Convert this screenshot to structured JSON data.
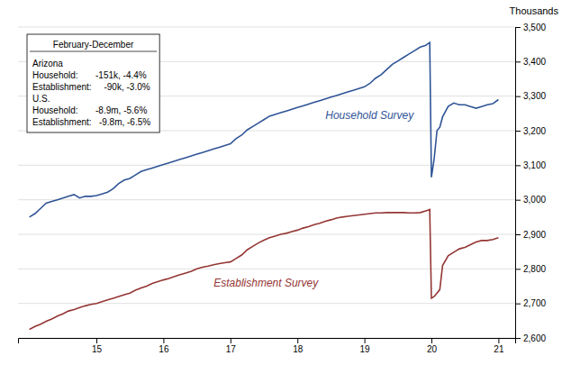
{
  "chart_data": {
    "type": "line",
    "title": "Thousands",
    "annotation": {
      "title": "February-December",
      "lines": [
        "Arizona",
        "Household:       -151k, -4.4%",
        "Establishment:     -90k, -3.0%",
        "U.S.",
        "Household:       -8.9m, -5.6%",
        "Establishment:   -9.8m, -6.5%"
      ]
    },
    "xlim": [
      13.83,
      21.25
    ],
    "xticks": [
      15,
      16,
      17,
      18,
      19,
      20,
      21
    ],
    "ylim": [
      2600,
      3500
    ],
    "yticks": [
      {
        "value": 2600,
        "label": "2,600"
      },
      {
        "value": 2700,
        "label": "2,700"
      },
      {
        "value": 2800,
        "label": "2,800"
      },
      {
        "value": 2900,
        "label": "2,900"
      },
      {
        "value": 3000,
        "label": "3,000"
      },
      {
        "value": 3100,
        "label": "3,100"
      },
      {
        "value": 3200,
        "label": "3,200"
      },
      {
        "value": 3300,
        "label": "3,300"
      },
      {
        "value": 3400,
        "label": "3,400"
      },
      {
        "value": 3500,
        "label": "3,500"
      }
    ],
    "grid": true,
    "series": [
      {
        "name": "Household Survey",
        "color": "#2F5496",
        "x": [
          14.0,
          14.083,
          14.167,
          14.25,
          14.333,
          14.417,
          14.5,
          14.583,
          14.667,
          14.75,
          14.833,
          14.917,
          15.0,
          15.083,
          15.167,
          15.25,
          15.333,
          15.417,
          15.5,
          15.583,
          15.667,
          15.75,
          15.833,
          15.917,
          16.0,
          16.083,
          16.167,
          16.25,
          16.333,
          16.417,
          16.5,
          16.583,
          16.667,
          16.75,
          16.833,
          16.917,
          17.0,
          17.083,
          17.167,
          17.25,
          17.333,
          17.417,
          17.5,
          17.583,
          17.667,
          17.75,
          17.833,
          17.917,
          18.0,
          18.083,
          18.167,
          18.25,
          18.333,
          18.417,
          18.5,
          18.583,
          18.667,
          18.75,
          18.833,
          18.917,
          19.0,
          19.083,
          19.167,
          19.25,
          19.333,
          19.417,
          19.5,
          19.583,
          19.667,
          19.75,
          19.833,
          19.917,
          19.95,
          19.975,
          20.0,
          20.042,
          20.083,
          20.125,
          20.167,
          20.208,
          20.25,
          20.333,
          20.417,
          20.5,
          20.583,
          20.667,
          20.75,
          20.833,
          20.917,
          21.0
        ],
        "values": [
          2950,
          2960,
          2975,
          2990,
          2995,
          3000,
          3005,
          3010,
          3015,
          3005,
          3010,
          3010,
          3012,
          3017,
          3022,
          3032,
          3047,
          3057,
          3062,
          3072,
          3082,
          3087,
          3092,
          3097,
          3102,
          3107,
          3112,
          3117,
          3122,
          3127,
          3132,
          3137,
          3142,
          3147,
          3152,
          3157,
          3162,
          3177,
          3187,
          3202,
          3212,
          3222,
          3232,
          3242,
          3247,
          3252,
          3257,
          3262,
          3267,
          3272,
          3277,
          3282,
          3287,
          3292,
          3297,
          3302,
          3307,
          3312,
          3317,
          3322,
          3327,
          3337,
          3352,
          3362,
          3377,
          3392,
          3402,
          3412,
          3422,
          3432,
          3442,
          3447,
          3452,
          3455,
          3065,
          3120,
          3200,
          3210,
          3240,
          3255,
          3270,
          3280,
          3275,
          3275,
          3270,
          3265,
          3270,
          3275,
          3278,
          3290
        ]
      },
      {
        "name": "Establishment Survey",
        "color": "#943634",
        "x": [
          14.0,
          14.083,
          14.167,
          14.25,
          14.333,
          14.417,
          14.5,
          14.583,
          14.667,
          14.75,
          14.833,
          14.917,
          15.0,
          15.083,
          15.167,
          15.25,
          15.333,
          15.417,
          15.5,
          15.583,
          15.667,
          15.75,
          15.833,
          15.917,
          16.0,
          16.083,
          16.167,
          16.25,
          16.333,
          16.417,
          16.5,
          16.583,
          16.667,
          16.75,
          16.833,
          16.917,
          17.0,
          17.083,
          17.167,
          17.25,
          17.333,
          17.417,
          17.5,
          17.583,
          17.667,
          17.75,
          17.833,
          17.917,
          18.0,
          18.083,
          18.167,
          18.25,
          18.333,
          18.417,
          18.5,
          18.583,
          18.667,
          18.75,
          18.833,
          18.917,
          19.0,
          19.083,
          19.167,
          19.25,
          19.333,
          19.417,
          19.5,
          19.583,
          19.667,
          19.75,
          19.833,
          19.917,
          19.95,
          19.975,
          20.0,
          20.042,
          20.083,
          20.125,
          20.167,
          20.25,
          20.333,
          20.417,
          20.5,
          20.583,
          20.667,
          20.75,
          20.833,
          20.917,
          21.0
        ],
        "values": [
          2625,
          2633,
          2640,
          2648,
          2655,
          2663,
          2670,
          2678,
          2682,
          2688,
          2693,
          2697,
          2700,
          2705,
          2710,
          2715,
          2720,
          2725,
          2730,
          2738,
          2745,
          2750,
          2758,
          2763,
          2768,
          2772,
          2778,
          2783,
          2788,
          2793,
          2800,
          2805,
          2808,
          2812,
          2815,
          2818,
          2820,
          2830,
          2840,
          2855,
          2865,
          2875,
          2883,
          2890,
          2895,
          2900,
          2903,
          2908,
          2912,
          2918,
          2922,
          2928,
          2932,
          2938,
          2942,
          2947,
          2950,
          2952,
          2954,
          2956,
          2958,
          2960,
          2962,
          2962,
          2963,
          2963,
          2963,
          2963,
          2962,
          2962,
          2963,
          2968,
          2970,
          2972,
          2715,
          2720,
          2730,
          2740,
          2810,
          2838,
          2848,
          2858,
          2862,
          2870,
          2878,
          2882,
          2882,
          2885,
          2890
        ]
      }
    ]
  }
}
